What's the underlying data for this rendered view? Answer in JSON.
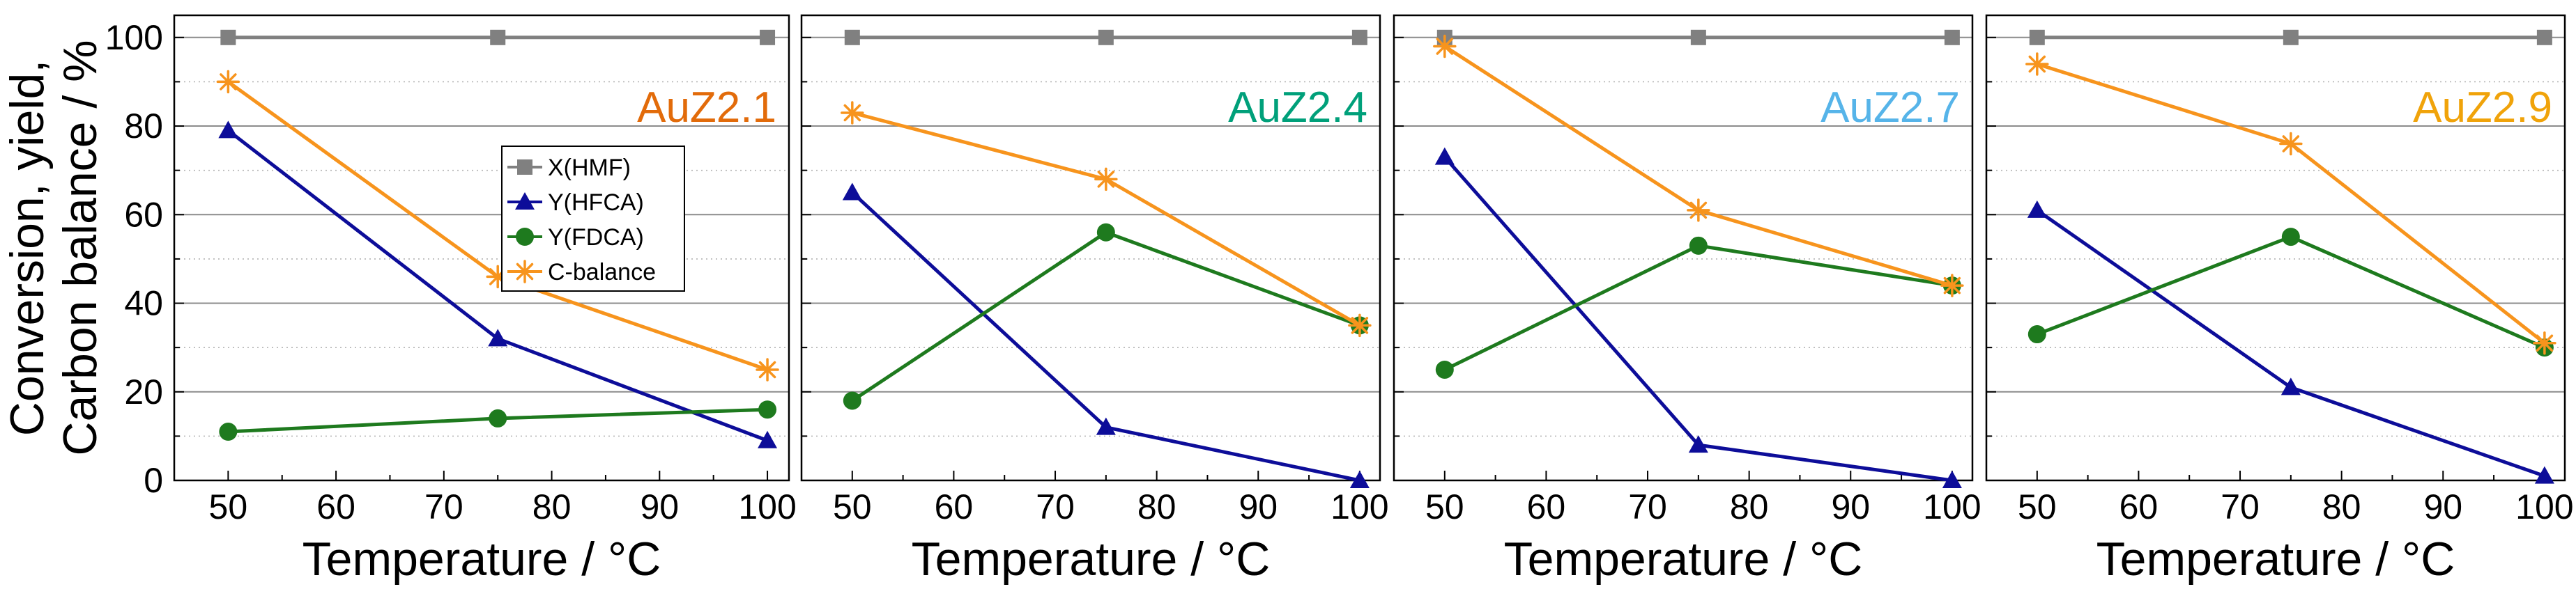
{
  "chart_data": [
    {
      "type": "line",
      "title": "AuZ2.1",
      "title_color": "#e26b0a",
      "xlabel": "Temperature / °C",
      "ylabel": [
        "Conversion, yield,",
        "Carbon balance / %"
      ],
      "x": [
        50,
        75,
        100
      ],
      "xlim": [
        45,
        102
      ],
      "ylim": [
        0,
        105
      ],
      "xticks": [
        50,
        60,
        70,
        80,
        90,
        100
      ],
      "yticks": [
        0,
        20,
        40,
        60,
        80,
        100
      ],
      "grid": true,
      "legend": "inside-left",
      "series": [
        {
          "name": "X(HMF)",
          "marker": "square",
          "color": "#808080",
          "values": [
            100,
            100,
            100
          ]
        },
        {
          "name": "Y(HFCA)",
          "marker": "triangle",
          "color": "#0d0d99",
          "values": [
            79,
            32,
            9
          ]
        },
        {
          "name": "Y(FDCA)",
          "marker": "circle",
          "color": "#1e7a1e",
          "values": [
            11,
            14,
            16
          ]
        },
        {
          "name": "C-balance",
          "marker": "asterisk",
          "color": "#f7941d",
          "values": [
            90,
            46,
            25
          ]
        }
      ]
    },
    {
      "type": "line",
      "title": "AuZ2.4",
      "title_color": "#00a07a",
      "xlabel": "Temperature / °C",
      "x": [
        50,
        75,
        100
      ],
      "xlim": [
        45,
        102
      ],
      "ylim": [
        0,
        105
      ],
      "xticks": [
        50,
        60,
        70,
        80,
        90,
        100
      ],
      "grid": true,
      "series": [
        {
          "name": "X(HMF)",
          "marker": "square",
          "color": "#808080",
          "values": [
            100,
            100,
            100
          ]
        },
        {
          "name": "Y(HFCA)",
          "marker": "triangle",
          "color": "#0d0d99",
          "values": [
            65,
            12,
            0
          ]
        },
        {
          "name": "Y(FDCA)",
          "marker": "circle",
          "color": "#1e7a1e",
          "values": [
            18,
            56,
            35
          ]
        },
        {
          "name": "C-balance",
          "marker": "asterisk",
          "color": "#f7941d",
          "values": [
            83,
            68,
            35
          ]
        }
      ]
    },
    {
      "type": "line",
      "title": "AuZ2.7",
      "title_color": "#56b4e9",
      "xlabel": "Temperature / °C",
      "x": [
        50,
        75,
        100
      ],
      "xlim": [
        45,
        102
      ],
      "ylim": [
        0,
        105
      ],
      "xticks": [
        50,
        60,
        70,
        80,
        90,
        100
      ],
      "grid": true,
      "series": [
        {
          "name": "X(HMF)",
          "marker": "square",
          "color": "#808080",
          "values": [
            100,
            100,
            100
          ]
        },
        {
          "name": "Y(HFCA)",
          "marker": "triangle",
          "color": "#0d0d99",
          "values": [
            73,
            8,
            0
          ]
        },
        {
          "name": "Y(FDCA)",
          "marker": "circle",
          "color": "#1e7a1e",
          "values": [
            25,
            53,
            44
          ]
        },
        {
          "name": "C-balance",
          "marker": "asterisk",
          "color": "#f7941d",
          "values": [
            98,
            61,
            44
          ]
        }
      ]
    },
    {
      "type": "line",
      "title": "AuZ2.9",
      "title_color": "#f0a30a",
      "xlabel": "Temperature / °C",
      "x": [
        50,
        75,
        100
      ],
      "xlim": [
        45,
        102
      ],
      "ylim": [
        0,
        105
      ],
      "xticks": [
        50,
        60,
        70,
        80,
        90,
        100
      ],
      "grid": true,
      "series": [
        {
          "name": "X(HMF)",
          "marker": "square",
          "color": "#808080",
          "values": [
            100,
            100,
            100
          ]
        },
        {
          "name": "Y(HFCA)",
          "marker": "triangle",
          "color": "#0d0d99",
          "values": [
            61,
            21,
            1
          ]
        },
        {
          "name": "Y(FDCA)",
          "marker": "circle",
          "color": "#1e7a1e",
          "values": [
            33,
            55,
            30
          ]
        },
        {
          "name": "C-balance",
          "marker": "asterisk",
          "color": "#f7941d",
          "values": [
            94,
            76,
            31
          ]
        }
      ]
    }
  ]
}
